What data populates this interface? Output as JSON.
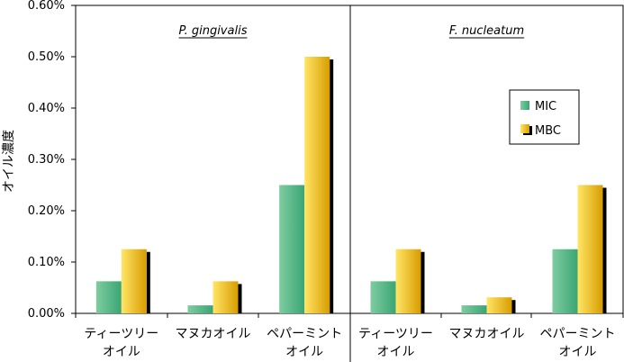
{
  "chart_data": {
    "type": "bar",
    "ylabel": "オイル濃度",
    "y_ticks": [
      "0.00%",
      "0.10%",
      "0.20%",
      "0.30%",
      "0.40%",
      "0.50%",
      "0.60%"
    ],
    "ylim": [
      0,
      0.6
    ],
    "grid": false,
    "legend_position": "right",
    "categories": [
      {
        "lines": [
          "ティーツリー",
          "オイル"
        ]
      },
      {
        "lines": [
          "マヌカオイル"
        ]
      },
      {
        "lines": [
          "ペパーミント",
          "オイル"
        ]
      }
    ],
    "panels": [
      {
        "title": "P. gingivalis",
        "series": [
          {
            "name": "MIC",
            "values": [
              0.0625,
              0.015625,
              0.25
            ]
          },
          {
            "name": "MBC",
            "values": [
              0.125,
              0.0625,
              0.5
            ]
          }
        ]
      },
      {
        "title": "F. nucleatum",
        "series": [
          {
            "name": "MIC",
            "values": [
              0.0625,
              0.015625,
              0.125
            ]
          },
          {
            "name": "MBC",
            "values": [
              0.125,
              0.03125,
              0.25
            ]
          }
        ]
      }
    ],
    "colors": {
      "MIC_light": "#7fcca0",
      "MIC_dark": "#3aa574",
      "MBC_light": "#ffe566",
      "MBC_dark": "#d89c00",
      "shadow": "#000000"
    }
  }
}
